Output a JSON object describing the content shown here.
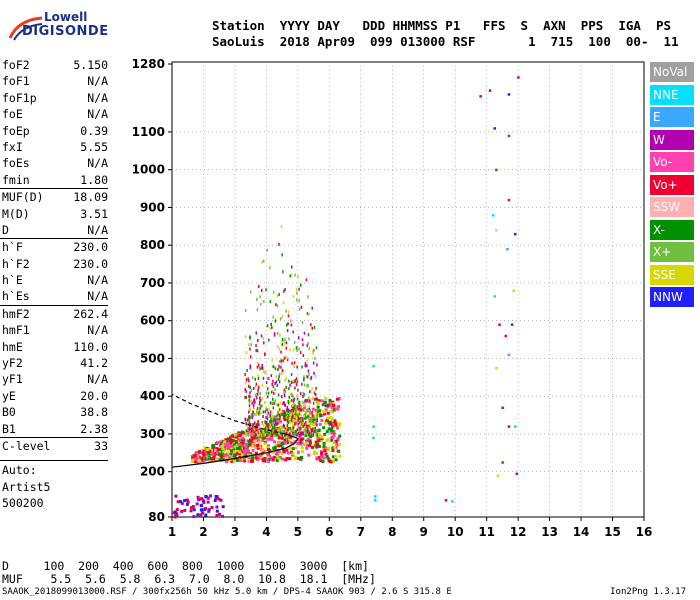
{
  "logo": {
    "line1": "Lowell",
    "line2": "DIGISONDE"
  },
  "header": {
    "labels": "Station  YYYY DAY   DDD HHMMSS P1   FFS  S  AXN  PPS  IGA  PS",
    "values": "SaoLuis  2018 Apr09  099 013000 RSF       1  715  100  00-  11"
  },
  "params": [
    {
      "name": "foF2",
      "value": "5.150"
    },
    {
      "name": "foF1",
      "value": "N/A"
    },
    {
      "name": "foF1p",
      "value": "N/A"
    },
    {
      "name": "foE",
      "value": "N/A"
    },
    {
      "name": "foEp",
      "value": "0.39"
    },
    {
      "name": "fxI",
      "value": "5.55"
    },
    {
      "name": "foEs",
      "value": "N/A"
    },
    {
      "name": "fmin",
      "value": "1.80"
    },
    {
      "name": "MUF(D)",
      "value": "18.09",
      "sep": true
    },
    {
      "name": "M(D)",
      "value": "3.51"
    },
    {
      "name": "D",
      "value": "N/A"
    },
    {
      "name": "h`F",
      "value": "230.0",
      "sep": true
    },
    {
      "name": "h`F2",
      "value": "230.0"
    },
    {
      "name": "h`E",
      "value": "N/A"
    },
    {
      "name": "h`Es",
      "value": "N/A"
    },
    {
      "name": "hmF2",
      "value": "262.4",
      "sep": true
    },
    {
      "name": "hmF1",
      "value": "N/A"
    },
    {
      "name": "hmE",
      "value": "110.0"
    },
    {
      "name": "yF2",
      "value": "41.2"
    },
    {
      "name": "yF1",
      "value": "N/A"
    },
    {
      "name": "yE",
      "value": "20.0"
    },
    {
      "name": "B0",
      "value": "38.8"
    },
    {
      "name": "B1",
      "value": "2.38"
    },
    {
      "name": "C-level",
      "value": "33",
      "sep": true
    }
  ],
  "autoscale": {
    "line1": "Auto:",
    "line2": "Artist5",
    "line3": "500200"
  },
  "legend": [
    {
      "label": "NoVal",
      "color": "#a0a0a0"
    },
    {
      "label": "NNE",
      "color": "#00e0ff"
    },
    {
      "label": "E",
      "color": "#3aa8ff"
    },
    {
      "label": "W",
      "color": "#b000b0"
    },
    {
      "label": "Vo-",
      "color": "#ff40b0"
    },
    {
      "label": "Vo+",
      "color": "#f00030"
    },
    {
      "label": "SSW",
      "color": "#ffb0b0"
    },
    {
      "label": "X-",
      "color": "#009000"
    },
    {
      "label": "X+",
      "color": "#70c040"
    },
    {
      "label": "SSE",
      "color": "#d8d800"
    },
    {
      "label": "NNW",
      "color": "#2020ff"
    }
  ],
  "muf_table": {
    "d_line": "D     100  200  400  600  800  1000  1500  3000  [km]",
    "muf_line": "MUF    5.5  5.6  5.8  6.3  7.0  8.0  10.8  18.1  [MHz]"
  },
  "footer": {
    "left": "SAAOK_2018099013000.RSF / 300fx256h 50 kHz 5.0 km / DPS-4 SAAOK 903 / 2.6 S 315.8 E",
    "right": "Ion2Png 1.3.17"
  },
  "chart_data": {
    "type": "scatter",
    "title": "",
    "xlabel": "",
    "ylabel": "",
    "xlim": [
      1,
      16
    ],
    "ylim": [
      80,
      1280
    ],
    "x_ticks": [
      1,
      2,
      3,
      4,
      5,
      6,
      7,
      8,
      9,
      10,
      11,
      12,
      13,
      14,
      15,
      16
    ],
    "y_ticks": [
      80,
      200,
      300,
      400,
      500,
      600,
      700,
      800,
      900,
      1000,
      1100,
      1280
    ],
    "scatter_regions": [
      {
        "name": "F2 trace core",
        "x": [
          1.6,
          6.3
        ],
        "y": [
          230,
          400
        ],
        "color_mix": [
          "#f00030",
          "#ff40b0",
          "#009000",
          "#d8d800"
        ]
      },
      {
        "name": "spread F",
        "x": [
          3.0,
          5.8
        ],
        "y": [
          300,
          900
        ],
        "color_mix": [
          "#d8d800",
          "#f00030",
          "#009000",
          "#b000b0",
          "#70c040"
        ]
      },
      {
        "name": "low echoes",
        "x": [
          1.0,
          2.6
        ],
        "y": [
          80,
          140
        ],
        "color_mix": [
          "#b000b0",
          "#2020ff",
          "#f00030"
        ]
      }
    ],
    "isolated_points": [
      {
        "x": 7.4,
        "y": 480,
        "c": "#00e0ff"
      },
      {
        "x": 7.4,
        "y": 320,
        "c": "#00e0ff"
      },
      {
        "x": 7.4,
        "y": 290,
        "c": "#00e0ff"
      },
      {
        "x": 7.45,
        "y": 135,
        "c": "#00e0ff"
      },
      {
        "x": 7.45,
        "y": 125,
        "c": "#00e0ff"
      },
      {
        "x": 9.7,
        "y": 125,
        "c": "#f00030"
      },
      {
        "x": 9.9,
        "y": 122,
        "c": "#00e0ff"
      },
      {
        "x": 10.8,
        "y": 1195,
        "c": "#f00030"
      },
      {
        "x": 11.1,
        "y": 1210,
        "c": "#b000b0"
      },
      {
        "x": 11.25,
        "y": 1110,
        "c": "#2020ff"
      },
      {
        "x": 11.7,
        "y": 1090,
        "c": "#009000"
      },
      {
        "x": 11.3,
        "y": 1000,
        "c": "#009000"
      },
      {
        "x": 11.7,
        "y": 920,
        "c": "#f00030"
      },
      {
        "x": 11.2,
        "y": 880,
        "c": "#00e0ff"
      },
      {
        "x": 11.3,
        "y": 840,
        "c": "#ffb0b0"
      },
      {
        "x": 11.65,
        "y": 790,
        "c": "#3aa8ff"
      },
      {
        "x": 11.9,
        "y": 830,
        "c": "#2020ff"
      },
      {
        "x": 11.85,
        "y": 680,
        "c": "#d8d800"
      },
      {
        "x": 11.25,
        "y": 665,
        "c": "#00e0ff"
      },
      {
        "x": 11.4,
        "y": 590,
        "c": "#f00030"
      },
      {
        "x": 11.8,
        "y": 590,
        "c": "#b000b0"
      },
      {
        "x": 11.6,
        "y": 560,
        "c": "#f00030"
      },
      {
        "x": 11.7,
        "y": 510,
        "c": "#3aa8ff"
      },
      {
        "x": 11.3,
        "y": 475,
        "c": "#d8d800"
      },
      {
        "x": 11.5,
        "y": 370,
        "c": "#b000b0"
      },
      {
        "x": 11.7,
        "y": 320,
        "c": "#f00030"
      },
      {
        "x": 11.9,
        "y": 320,
        "c": "#00e0ff"
      },
      {
        "x": 11.5,
        "y": 225,
        "c": "#009000"
      },
      {
        "x": 11.35,
        "y": 190,
        "c": "#d8d800"
      },
      {
        "x": 11.95,
        "y": 195,
        "c": "#f00030"
      },
      {
        "x": 12.0,
        "y": 1245,
        "c": "#b000b0"
      },
      {
        "x": 11.7,
        "y": 1200,
        "c": "#2020ff"
      }
    ],
    "profile_curve": [
      {
        "f": 1.0,
        "h": 212
      },
      {
        "f": 2.0,
        "h": 222
      },
      {
        "f": 3.0,
        "h": 235
      },
      {
        "f": 4.0,
        "h": 250
      },
      {
        "f": 4.6,
        "h": 262
      },
      {
        "f": 4.9,
        "h": 275
      },
      {
        "f": 5.0,
        "h": 288
      },
      {
        "f": 4.6,
        "h": 300
      },
      {
        "f": 3.8,
        "h": 315
      },
      {
        "f": 3.0,
        "h": 335
      },
      {
        "f": 2.2,
        "h": 360
      },
      {
        "f": 1.6,
        "h": 380
      },
      {
        "f": 1.0,
        "h": 405
      }
    ]
  }
}
